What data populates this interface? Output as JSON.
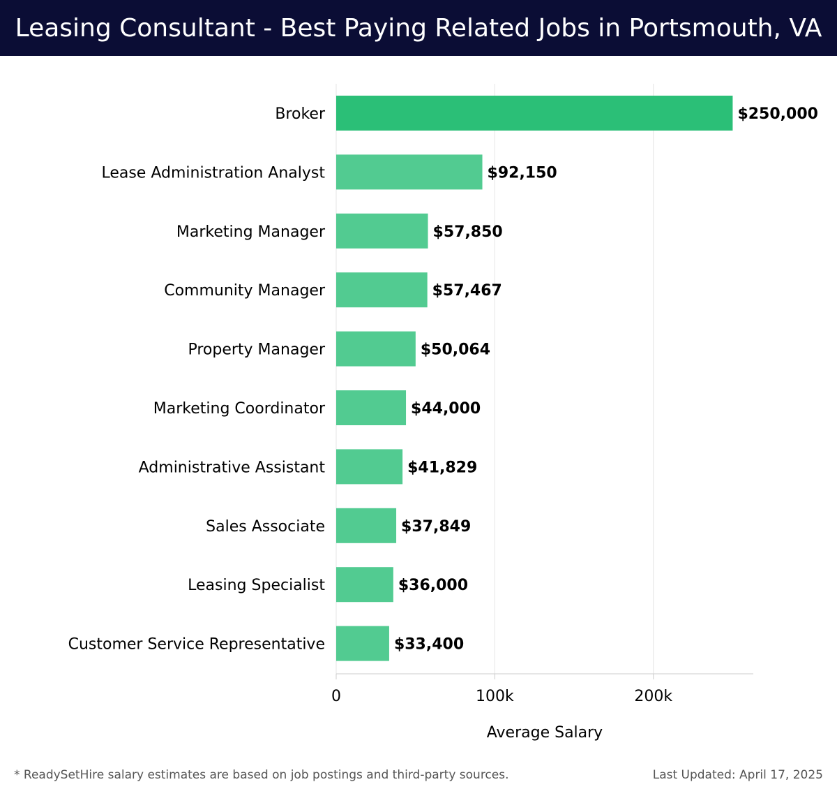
{
  "header": {
    "title": "Leasing Consultant - Best Paying Related Jobs in Portsmouth, VA"
  },
  "chart_data": {
    "type": "bar",
    "orientation": "horizontal",
    "categories": [
      "Broker",
      "Lease Administration Analyst",
      "Marketing Manager",
      "Community Manager",
      "Property Manager",
      "Marketing Coordinator",
      "Administrative Assistant",
      "Sales Associate",
      "Leasing Specialist",
      "Customer Service Representative"
    ],
    "values": [
      250000,
      92150,
      57850,
      57467,
      50064,
      44000,
      41829,
      37849,
      36000,
      33400
    ],
    "value_labels": [
      "$250,000",
      "$92,150",
      "$57,850",
      "$57,467",
      "$50,064",
      "$44,000",
      "$41,829",
      "$37,849",
      "$36,000",
      "$33,400"
    ],
    "xlabel": "Average Salary",
    "ylabel": "",
    "xlim": [
      0,
      263000
    ],
    "x_ticks": [
      0,
      100000,
      200000
    ],
    "x_tick_labels": [
      "0",
      "100k",
      "200k"
    ],
    "grid": "vertical",
    "colors": {
      "top_bar": "#2bbf77",
      "bar": "#52cb91",
      "grid": "#e4e4e4",
      "axis": "#cccccc"
    }
  },
  "footer": {
    "note": "* ReadySetHire salary estimates are based on job postings and third-party sources.",
    "updated": "Last Updated: April 17, 2025"
  }
}
